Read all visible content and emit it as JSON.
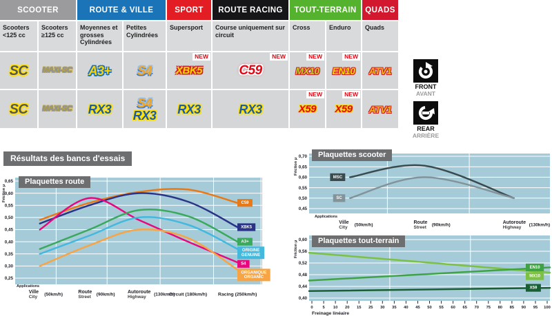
{
  "results": {
    "title": "Résultats des bancs d'essais"
  },
  "table": {
    "new_label": "NEW",
    "groups": [
      {
        "label": "SCOOTER",
        "span": 2,
        "color": "#9b9b9d"
      },
      {
        "label": "ROUTE & VILLE",
        "span": 2,
        "color": "#1b74b8"
      },
      {
        "label": "SPORT",
        "span": 1,
        "color": "#e21d23"
      },
      {
        "label": "ROUTE RACING",
        "span": 1,
        "color": "#161618"
      },
      {
        "label": "TOUT-TERRAIN",
        "span": 2,
        "color": "#55b22f"
      },
      {
        "label": "QUADS",
        "span": 1,
        "color": "#d2182e"
      }
    ],
    "subheaders": [
      "Scooters <125 cc",
      "Scooters ≥125 cc",
      "Moyennes et grosses Cylindrées",
      "Petites Cylindrées",
      "Supersport",
      "Course uniquement sur circuit",
      "Cross",
      "Enduro",
      "Quads"
    ],
    "rows": [
      {
        "label_en": "FRONT",
        "label_fr": "AVANT",
        "cells": [
          {
            "products": [
              {
                "text": "SC",
                "style": "sc"
              }
            ],
            "new": false
          },
          {
            "products": [
              {
                "text": "MAXI-SC",
                "style": "maxisc"
              }
            ],
            "new": false
          },
          {
            "products": [
              {
                "text": "A3+",
                "style": "a3"
              }
            ],
            "new": false
          },
          {
            "products": [
              {
                "text": "S4",
                "style": "s4"
              }
            ],
            "new": false
          },
          {
            "products": [
              {
                "text": "XBK5",
                "style": "xbk5"
              }
            ],
            "new": true
          },
          {
            "products": [
              {
                "text": "C59",
                "style": "c59"
              }
            ],
            "new": true
          },
          {
            "products": [
              {
                "text": "MX10",
                "style": "mx10"
              }
            ],
            "new": true
          },
          {
            "products": [
              {
                "text": "EN10",
                "style": "en10"
              }
            ],
            "new": true
          },
          {
            "products": [
              {
                "text": "ATV1",
                "style": "atv1"
              }
            ],
            "new": false
          }
        ]
      },
      {
        "label_en": "REAR",
        "label_fr": "ARRIÈRE",
        "cells": [
          {
            "products": [
              {
                "text": "SC",
                "style": "sc"
              }
            ],
            "new": false
          },
          {
            "products": [
              {
                "text": "MAXI-SC",
                "style": "maxisc"
              }
            ],
            "new": false
          },
          {
            "products": [
              {
                "text": "RX3",
                "style": "rx3"
              }
            ],
            "new": false
          },
          {
            "products": [
              {
                "text": "S4",
                "style": "s4"
              },
              {
                "text": "RX3",
                "style": "rx3"
              }
            ],
            "new": false
          },
          {
            "products": [
              {
                "text": "RX3",
                "style": "rx3"
              }
            ],
            "new": false
          },
          {
            "products": [
              {
                "text": "RX3",
                "style": "rx3"
              }
            ],
            "new": false
          },
          {
            "products": [
              {
                "text": "X59",
                "style": "x59"
              }
            ],
            "new": true
          },
          {
            "products": [
              {
                "text": "X59",
                "style": "x59"
              }
            ],
            "new": true
          },
          {
            "products": [
              {
                "text": "ATV1",
                "style": "atv1"
              }
            ],
            "new": false
          }
        ]
      }
    ]
  },
  "chart_data": [
    {
      "type": "line",
      "title": "Plaquettes route",
      "ylabel": "Friction µ",
      "applications_label": "Applications",
      "ylim": [
        0.25,
        0.65
      ],
      "yticks": [
        "0,65",
        "0,60",
        "0,55",
        "0,50",
        "0,45",
        "0,40",
        "0,35",
        "0,30",
        "0,25"
      ],
      "grid": true,
      "legend_position": "right",
      "categories": [
        {
          "fr": "Ville",
          "en": "City",
          "speed": "(50km/h)"
        },
        {
          "fr": "Route",
          "en": "Street",
          "speed": "(90km/h)"
        },
        {
          "fr": "Autoroute",
          "en": "Highway",
          "speed": "(130km/h)"
        },
        {
          "fr": "Circuit",
          "en": "",
          "speed": "(180km/h)"
        },
        {
          "fr": "Racing",
          "en": "",
          "speed": "(250km/h)"
        }
      ],
      "series": [
        {
          "name": "C59",
          "label_lines": [
            "C59"
          ],
          "color": "#e87917",
          "values": [
            0.49,
            0.56,
            0.605,
            0.615,
            0.56
          ]
        },
        {
          "name": "XBK5",
          "label_lines": [
            "XBK5"
          ],
          "color": "#2b3388",
          "values": [
            0.475,
            0.55,
            0.6,
            0.565,
            0.46
          ]
        },
        {
          "name": "S4",
          "label_lines": [
            "S4"
          ],
          "color": "#e6097d",
          "values": [
            0.45,
            0.58,
            0.49,
            0.4,
            0.315
          ]
        },
        {
          "name": "A3+",
          "label_lines": [
            "A3+"
          ],
          "color": "#3ba95c",
          "values": [
            0.37,
            0.45,
            0.53,
            0.505,
            0.4
          ]
        },
        {
          "name": "ORIGINE / GENUINE",
          "label_lines": [
            "ORIGINE",
            "GENUINE"
          ],
          "color": "#44b8dd",
          "values": [
            0.35,
            0.425,
            0.5,
            0.47,
            0.37
          ]
        },
        {
          "name": "ORGANIQUE / ORGANIC",
          "label_lines": [
            "ORGANIQUE",
            "ORGANIC"
          ],
          "color": "#f7a445",
          "values": [
            0.3,
            0.385,
            0.45,
            0.415,
            0.285
          ]
        }
      ]
    },
    {
      "type": "line",
      "title": "Plaquettes scooter",
      "ylabel": "Friction µ",
      "applications_label": "Applications",
      "ylim": [
        0.45,
        0.7
      ],
      "yticks": [
        "0,70",
        "0,65",
        "0,60",
        "0,55",
        "0,50",
        "0,45"
      ],
      "grid": true,
      "legend_position": "left",
      "categories": [
        {
          "fr": "Ville",
          "en": "City",
          "speed": "(50km/h)"
        },
        {
          "fr": "Route",
          "en": "Street",
          "speed": "(90km/h)"
        },
        {
          "fr": "Autoroute",
          "en": "Highway",
          "speed": "(130km/h)"
        }
      ],
      "series": [
        {
          "name": "MSC",
          "label_lines": [
            "MSC"
          ],
          "color": "#3a4b50",
          "values": [
            0.6,
            0.655,
            0.5
          ]
        },
        {
          "name": "SC",
          "label_lines": [
            "SC"
          ],
          "color": "#82949a",
          "values": [
            0.5,
            0.6,
            0.5
          ]
        }
      ]
    },
    {
      "type": "line",
      "title": "Plaquettes tout-terrain",
      "ylabel": "Friction µ",
      "xlabel": "Freinage linéaire",
      "ylim": [
        0.4,
        0.6
      ],
      "yticks": [
        "0,60",
        "0,56",
        "0,52",
        "0,48",
        "0,44",
        "0,40"
      ],
      "xticks": [
        "0",
        "5",
        "10",
        "20",
        "15",
        "25",
        "30",
        "35",
        "40",
        "45",
        "50",
        "55",
        "60",
        "65",
        "70",
        "75",
        "80",
        "85",
        "90",
        "95",
        "100"
      ],
      "grid": true,
      "legend_position": "right",
      "series": [
        {
          "name": "MX10",
          "label_lines": [
            "MX10"
          ],
          "color": "#7cc142",
          "values": [
            0.555,
            0.487
          ]
        },
        {
          "name": "EN10",
          "label_lines": [
            "EN10"
          ],
          "color": "#3fa346",
          "values": [
            0.46,
            0.505
          ]
        },
        {
          "name": "X59",
          "label_lines": [
            "X59"
          ],
          "color": "#1a5e33",
          "values": [
            0.424,
            0.435
          ]
        }
      ]
    }
  ]
}
